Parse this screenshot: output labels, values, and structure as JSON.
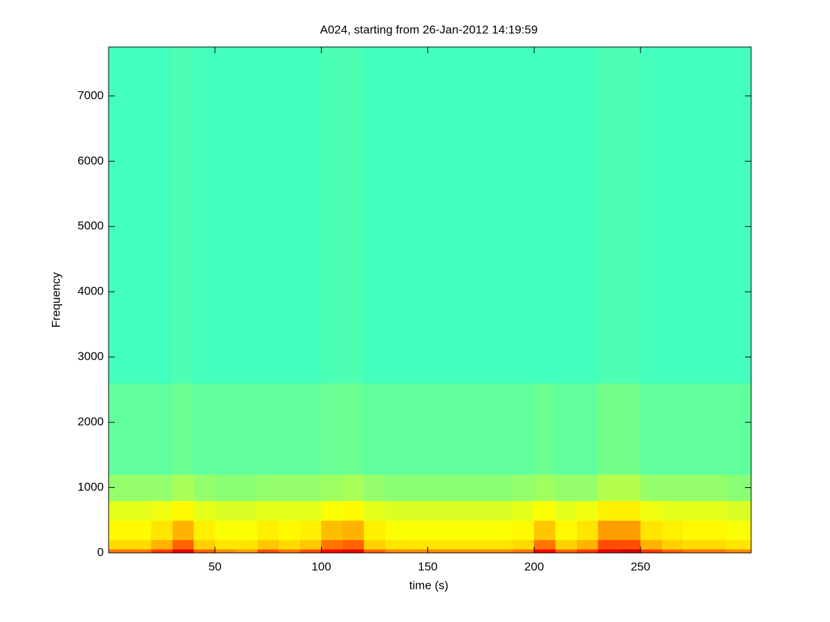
{
  "chart_data": {
    "type": "spectrogram",
    "title": "A024, starting from 26-Jan-2012 14:19:59",
    "xlabel": "time (s)",
    "ylabel": "Frequency",
    "xlim": [
      0,
      302
    ],
    "ylim": [
      0,
      7750
    ],
    "xticks": [
      50,
      100,
      150,
      200,
      250
    ],
    "yticks": [
      0,
      1000,
      2000,
      3000,
      4000,
      5000,
      6000,
      7000
    ],
    "colormap": "jet",
    "clim": [
      0,
      1
    ],
    "xbins": [
      0,
      10,
      20,
      30,
      40,
      50,
      60,
      70,
      80,
      90,
      100,
      110,
      120,
      130,
      140,
      150,
      160,
      170,
      180,
      190,
      200,
      210,
      220,
      230,
      240,
      250,
      260,
      270,
      280,
      290,
      302
    ],
    "ybins": [
      0,
      60,
      200,
      500,
      800,
      1200,
      2600,
      7750
    ],
    "z": [
      [
        0.76,
        0.76,
        0.82,
        0.9,
        0.78,
        0.74,
        0.72,
        0.8,
        0.76,
        0.8,
        0.88,
        0.9,
        0.78,
        0.74,
        0.74,
        0.74,
        0.74,
        0.74,
        0.74,
        0.76,
        0.88,
        0.78,
        0.82,
        0.9,
        0.92,
        0.82,
        0.78,
        0.76,
        0.76,
        0.74
      ],
      [
        0.66,
        0.66,
        0.7,
        0.78,
        0.67,
        0.65,
        0.65,
        0.68,
        0.66,
        0.68,
        0.76,
        0.78,
        0.67,
        0.65,
        0.65,
        0.65,
        0.65,
        0.65,
        0.65,
        0.66,
        0.76,
        0.67,
        0.7,
        0.8,
        0.8,
        0.7,
        0.67,
        0.66,
        0.66,
        0.65
      ],
      [
        0.63,
        0.63,
        0.65,
        0.7,
        0.64,
        0.62,
        0.62,
        0.64,
        0.63,
        0.64,
        0.69,
        0.7,
        0.64,
        0.62,
        0.62,
        0.62,
        0.62,
        0.62,
        0.62,
        0.63,
        0.68,
        0.63,
        0.65,
        0.72,
        0.72,
        0.65,
        0.64,
        0.63,
        0.63,
        0.62
      ],
      [
        0.6,
        0.6,
        0.61,
        0.63,
        0.6,
        0.59,
        0.59,
        0.6,
        0.6,
        0.6,
        0.62,
        0.63,
        0.6,
        0.59,
        0.59,
        0.59,
        0.59,
        0.59,
        0.59,
        0.6,
        0.62,
        0.6,
        0.61,
        0.64,
        0.64,
        0.61,
        0.6,
        0.6,
        0.6,
        0.59
      ],
      [
        0.52,
        0.52,
        0.52,
        0.54,
        0.52,
        0.51,
        0.51,
        0.52,
        0.52,
        0.52,
        0.53,
        0.54,
        0.52,
        0.51,
        0.51,
        0.51,
        0.51,
        0.51,
        0.51,
        0.52,
        0.53,
        0.52,
        0.52,
        0.55,
        0.55,
        0.52,
        0.52,
        0.52,
        0.52,
        0.51
      ],
      [
        0.47,
        0.47,
        0.47,
        0.48,
        0.47,
        0.47,
        0.47,
        0.47,
        0.47,
        0.47,
        0.48,
        0.48,
        0.47,
        0.47,
        0.47,
        0.47,
        0.47,
        0.47,
        0.47,
        0.47,
        0.48,
        0.47,
        0.47,
        0.49,
        0.49,
        0.47,
        0.47,
        0.47,
        0.47,
        0.47
      ],
      [
        0.44,
        0.44,
        0.44,
        0.45,
        0.44,
        0.44,
        0.44,
        0.44,
        0.44,
        0.44,
        0.45,
        0.45,
        0.44,
        0.44,
        0.44,
        0.44,
        0.44,
        0.44,
        0.44,
        0.44,
        0.44,
        0.44,
        0.44,
        0.45,
        0.45,
        0.44,
        0.44,
        0.44,
        0.44,
        0.44
      ]
    ]
  }
}
